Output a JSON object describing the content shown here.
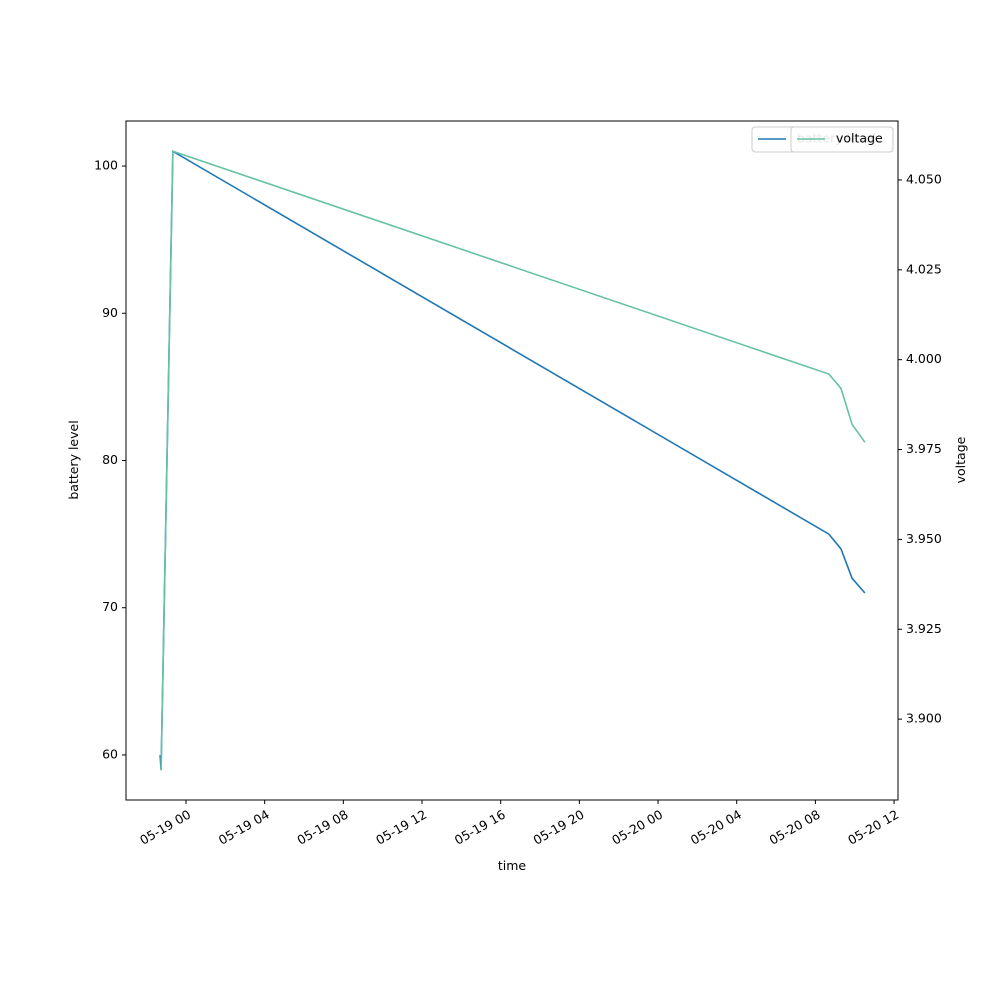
{
  "chart_data": {
    "type": "line",
    "x": [
      "05-18 22:41",
      "05-18 22:44",
      "05-18 23:20",
      "05-20 08:41",
      "05-20 09:18",
      "05-20 09:52",
      "05-20 10:31"
    ],
    "xlabel": "time",
    "ylabel": "battery level",
    "y2label": "voltage",
    "series": [
      {
        "name": "battery level",
        "color": "#1f77b4",
        "values": [
          60,
          59,
          101,
          75,
          74,
          72,
          71
        ]
      },
      {
        "name": "voltage",
        "color": "#66c2a5",
        "axis": "y2",
        "values": [
          3.886,
          3.886,
          4.058,
          3.996,
          3.992,
          3.982,
          3.977
        ]
      }
    ],
    "xlim": [
      "05-18 20:57",
      "05-20 12:12"
    ],
    "xticks": [
      "05-19 00",
      "05-19 04",
      "05-19 08",
      "05-19 12",
      "05-19 16",
      "05-19 20",
      "05-20 00",
      "05-20 04",
      "05-20 08",
      "05-20 12"
    ],
    "ylim": [
      56.94,
      103.06
    ],
    "yticks": [
      60,
      70,
      80,
      90,
      100
    ],
    "y2lim": [
      3.8775,
      4.0664
    ],
    "y2ticks": [
      {
        "value": 3.9,
        "label": "3.900"
      },
      {
        "value": 3.925,
        "label": "3.925"
      },
      {
        "value": 3.95,
        "label": "3.950"
      },
      {
        "value": 3.975,
        "label": "3.975"
      },
      {
        "value": 4.0,
        "label": "4.000"
      },
      {
        "value": 4.025,
        "label": "4.025"
      },
      {
        "value": 4.05,
        "label": "4.050"
      }
    ],
    "grid": false,
    "legend": "upper right"
  }
}
